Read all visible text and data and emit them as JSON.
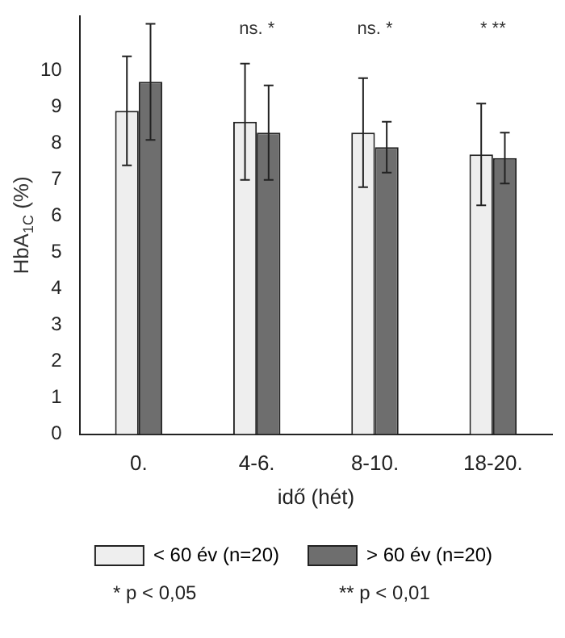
{
  "chart_data": {
    "type": "bar",
    "xlabel": "idő (hét)",
    "ylabel": "HbA$_{1C}$ (%)",
    "categories": [
      "0.",
      "4-6.",
      "8-10.",
      "18-20."
    ],
    "series": [
      {
        "name": "< 60 év (n=20)",
        "color": "#eeeeee",
        "values": [
          8.9,
          8.6,
          8.3,
          7.7
        ],
        "errors": [
          1.5,
          1.6,
          1.5,
          1.4
        ]
      },
      {
        "name": "> 60 év (n=20)",
        "color": "#6e6e6e",
        "values": [
          9.7,
          8.3,
          7.9,
          7.6
        ],
        "errors": [
          1.6,
          1.3,
          0.7,
          0.7
        ]
      }
    ],
    "ylim": [
      0,
      11.5
    ],
    "yticks": [
      0,
      1,
      2,
      3,
      4,
      5,
      6,
      7,
      8,
      9,
      10
    ],
    "grid": false,
    "legend": "bottom",
    "annotations": [
      "ns. *",
      "ns. *",
      "* **",
      "* p < 0,05",
      "** p < 0,01"
    ]
  }
}
